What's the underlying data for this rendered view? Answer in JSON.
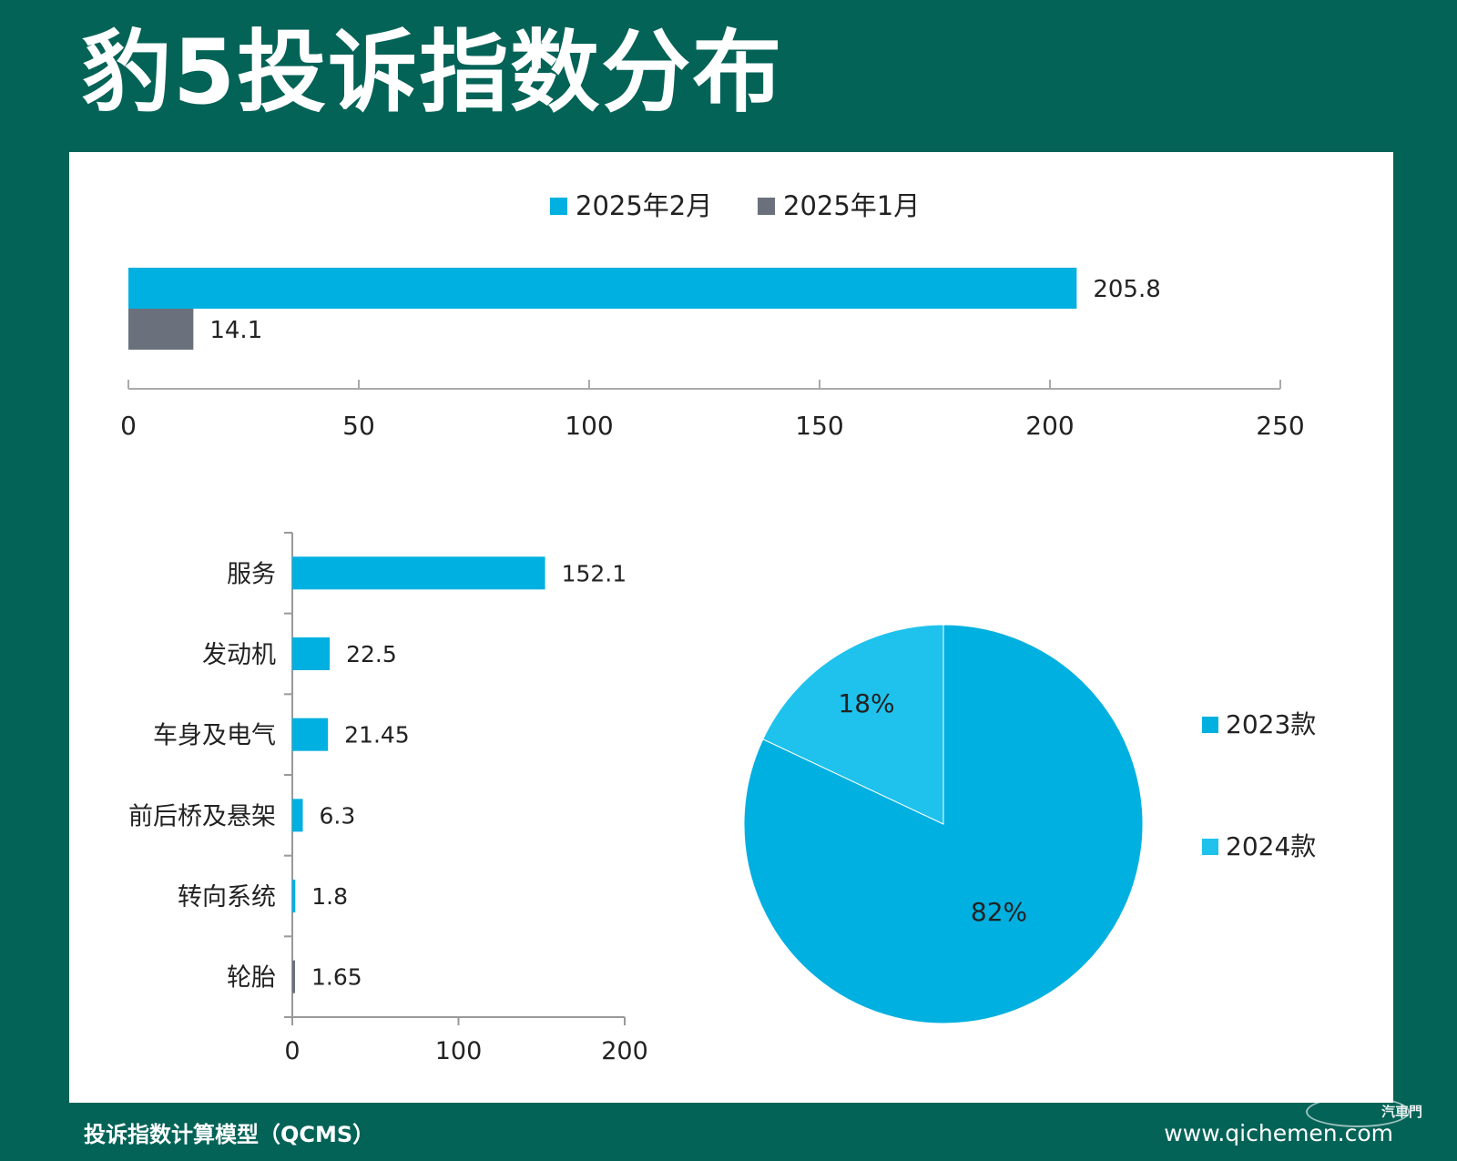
{
  "title": "豹5投诉指数分布",
  "footer": {
    "source": "投诉指数计算模型（QCMS）",
    "website": "www.qichemen.com",
    "logo_text": "汽車門"
  },
  "colors": {
    "background": "#036357",
    "feb": "#00b0e0",
    "jan": "#6b717c",
    "model_2023": "#00b0e0",
    "model_2024": "#1ec2ed"
  },
  "chart_data": [
    {
      "type": "bar",
      "orientation": "horizontal",
      "legend_position": "top",
      "series": [
        {
          "name": "2025年2月",
          "values": [
            205.8
          ],
          "color": "#00b0e0"
        },
        {
          "name": "2025年1月",
          "values": [
            14.1
          ],
          "color": "#6b717c"
        }
      ],
      "data_labels": [
        "205.8",
        "14.1"
      ],
      "xlim": [
        0,
        250
      ],
      "xticks": [
        "0",
        "50",
        "100",
        "150",
        "200",
        "250"
      ]
    },
    {
      "type": "bar",
      "orientation": "horizontal",
      "categories": [
        "服务",
        "发动机",
        "车身及电气",
        "前后桥及悬架",
        "转向系统",
        "轮胎"
      ],
      "values": [
        152.1,
        22.5,
        21.45,
        6.3,
        1.8,
        1.65
      ],
      "data_labels": [
        "152.1",
        "22.5",
        "21.45",
        "6.3",
        "1.8",
        "1.65"
      ],
      "bar_colors": [
        "#00b0e0",
        "#00b0e0",
        "#00b0e0",
        "#00b0e0",
        "#00b0e0",
        "#6b717c"
      ],
      "xlim": [
        0,
        200
      ],
      "xticks": [
        "0",
        "100",
        "200"
      ]
    },
    {
      "type": "pie",
      "legend_position": "right",
      "slices": [
        {
          "label": "2023款",
          "value": 82,
          "text": "82%",
          "color": "#00b0e0"
        },
        {
          "label": "2024款",
          "value": 18,
          "text": "18%",
          "color": "#1ec2ed"
        }
      ]
    }
  ]
}
